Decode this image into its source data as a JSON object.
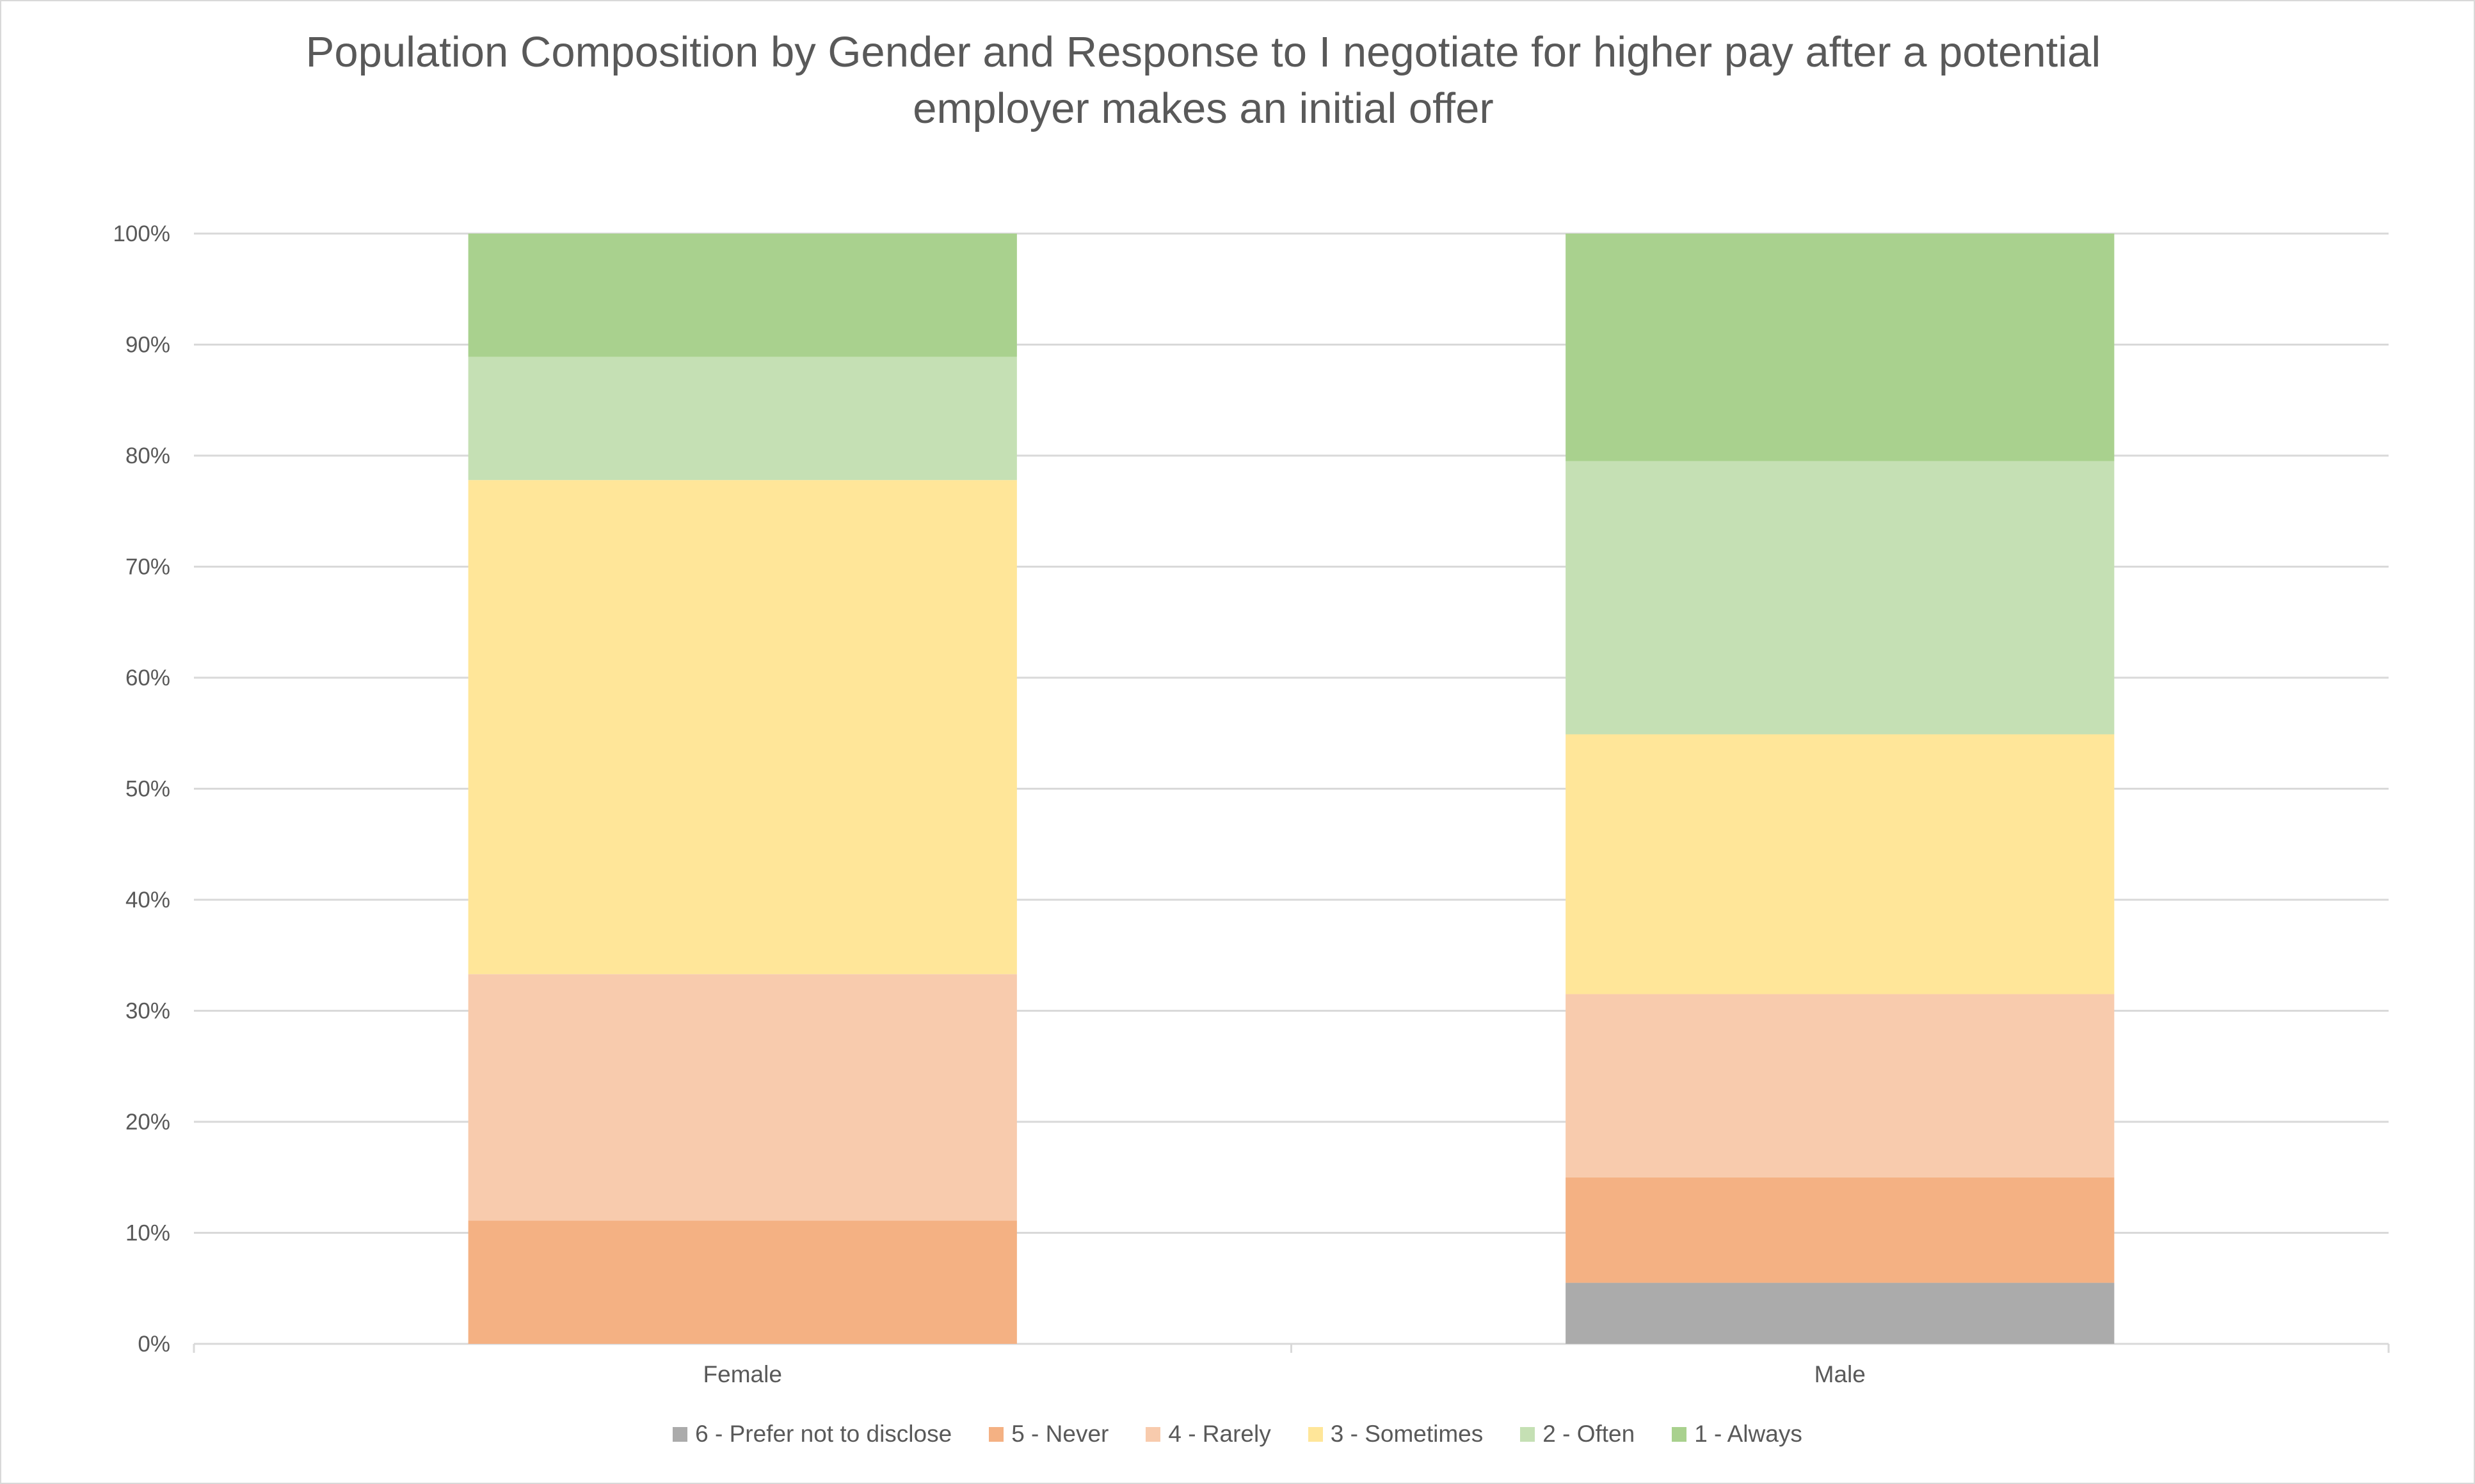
{
  "chart_data": {
    "type": "bar",
    "stacked": "percent",
    "title": "Population Composition by Gender and Response to I negotiate for higher pay after a potential employer makes an initial offer",
    "xlabel": "",
    "ylabel": "",
    "ylim": [
      0,
      100
    ],
    "yticks": [
      "0%",
      "10%",
      "20%",
      "30%",
      "40%",
      "50%",
      "60%",
      "70%",
      "80%",
      "90%",
      "100%"
    ],
    "grid": true,
    "legend_position": "bottom",
    "categories": [
      "Female",
      "Male"
    ],
    "series": [
      {
        "name": "6 - Prefer not to disclose",
        "color": "#ababab",
        "values": [
          0,
          5.5
        ]
      },
      {
        "name": "5 - Never",
        "color": "#f4b183",
        "values": [
          11.1,
          9.5
        ]
      },
      {
        "name": "4 - Rarely",
        "color": "#f8cbad",
        "values": [
          22.2,
          16.5
        ]
      },
      {
        "name": "3 - Sometimes",
        "color": "#ffe699",
        "values": [
          44.5,
          23.4
        ]
      },
      {
        "name": "2 - Often",
        "color": "#c5e0b4",
        "values": [
          11.1,
          24.6
        ]
      },
      {
        "name": "1 - Always",
        "color": "#a9d18e",
        "values": [
          11.1,
          20.5
        ]
      }
    ]
  }
}
